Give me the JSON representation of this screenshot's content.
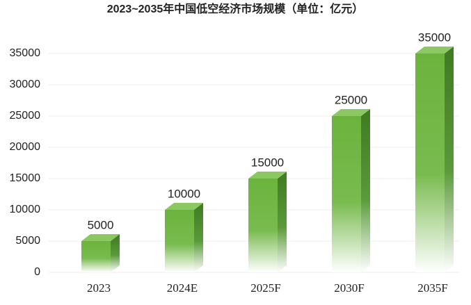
{
  "chart_data": {
    "type": "bar",
    "title": "2023~2035年中国低空经济市场规模（单位：亿元）",
    "categories": [
      "2023",
      "2024E",
      "2025F",
      "2030F",
      "2035F"
    ],
    "values": [
      5000,
      10000,
      15000,
      25000,
      35000
    ],
    "color": "#6cb33e",
    "ylim": [
      0,
      35000
    ],
    "yticks": [
      0,
      5000,
      10000,
      15000,
      20000,
      25000,
      30000,
      35000
    ],
    "grid": true
  }
}
